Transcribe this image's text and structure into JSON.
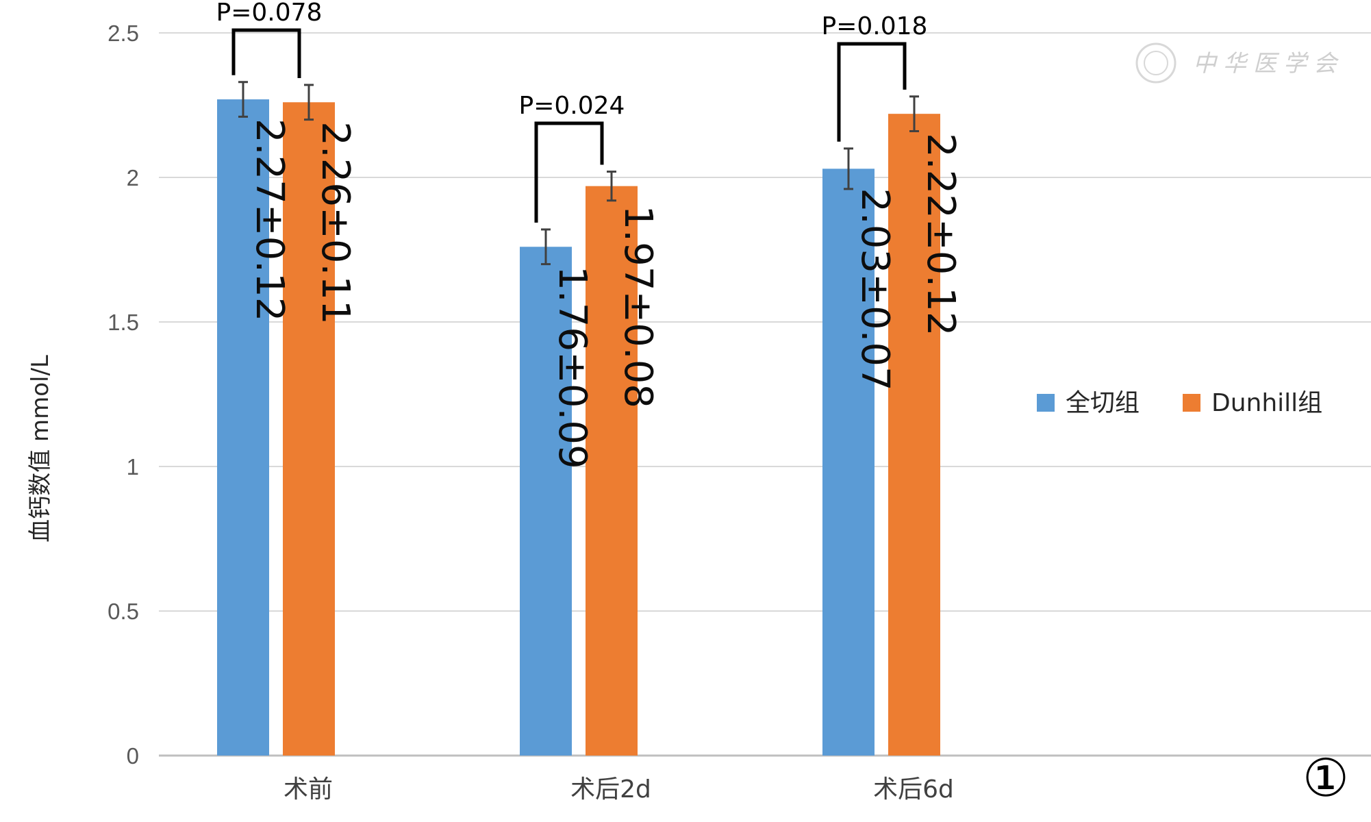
{
  "chart_data": {
    "type": "bar",
    "categories": [
      "术前",
      "术后2d",
      "术后6d"
    ],
    "series": [
      {
        "name": "全切组",
        "color": "#5b9bd5",
        "values": [
          2.27,
          1.76,
          2.03
        ],
        "errors": [
          0.06,
          0.06,
          0.07
        ],
        "labels": [
          "2.27±0.12",
          "1.76±0.09",
          "2.03±0.07"
        ]
      },
      {
        "name": "Dunhill组",
        "color": "#ed7d31",
        "values": [
          2.26,
          1.97,
          2.22
        ],
        "errors": [
          0.06,
          0.05,
          0.06
        ],
        "labels": [
          "2.26±0.11",
          "1.97±0.08",
          "2.22±0.12"
        ]
      }
    ],
    "p_values": [
      "P=0.078",
      "P=0.024",
      "P=0.018"
    ],
    "ylabel": "血钙数值   mmol/L",
    "ylim": [
      0,
      2.5
    ],
    "yticks": [
      "0",
      "0.5",
      "1",
      "1.5",
      "2",
      "2.5"
    ],
    "grid": true,
    "legend_position": "right",
    "figure_mark": "①",
    "watermark": "中华医学会"
  }
}
